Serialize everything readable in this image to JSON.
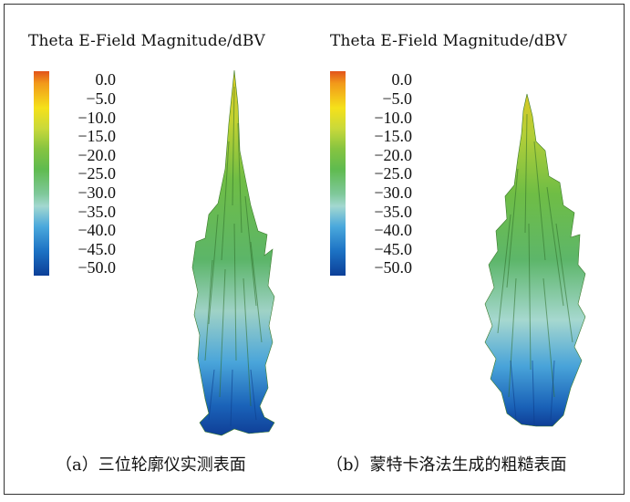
{
  "figure": {
    "panels": [
      {
        "id": "a",
        "title": "Theta E-Field Magnitude/dBV",
        "colorbar_ticks": [
          "0.0",
          "−5.0",
          "−10.0",
          "−15.0",
          "−20.0",
          "−25.0",
          "−30.0",
          "−35.0",
          "−40.0",
          "−45.0",
          "−50.0"
        ],
        "caption": "（a）三位轮廓仪实测表面"
      },
      {
        "id": "b",
        "title": "Theta E-Field Magnitude/dBV",
        "colorbar_ticks": [
          "0.0",
          "−5.0",
          "−10.0",
          "−15.0",
          "−20.0",
          "−25.0",
          "−30.0",
          "−35.0",
          "−40.0",
          "−45.0",
          "−50.0"
        ],
        "caption": "（b）蒙特卡洛法生成的粗糙表面"
      }
    ],
    "colorbar_colors": {
      "top": "#e2531a",
      "yellow": "#f5e11a",
      "green": "#5fbb4f",
      "cyan": "#a3d8d0",
      "blue": "#1c72c4",
      "bottom": "#0c3f98"
    }
  }
}
